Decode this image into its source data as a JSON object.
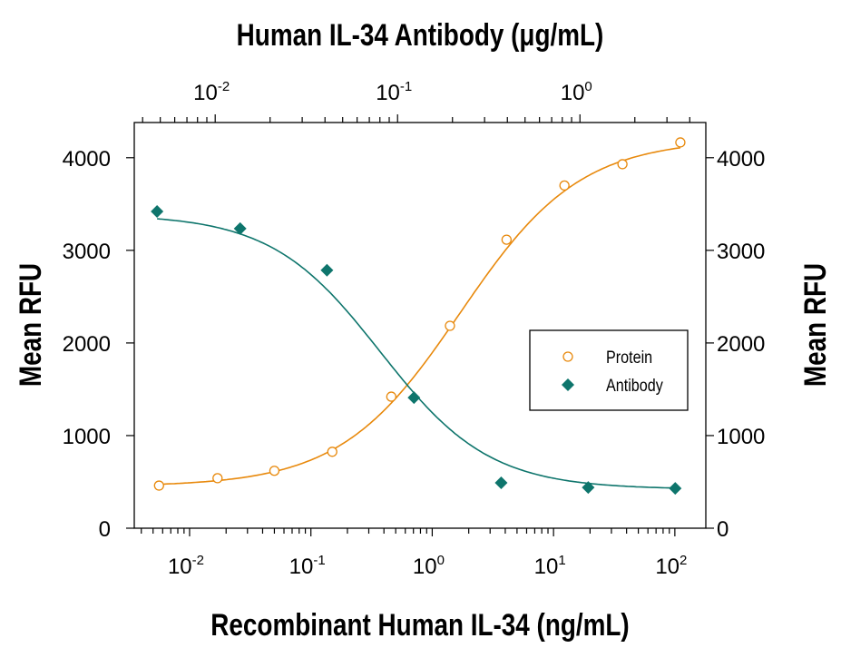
{
  "chart_data": {
    "type": "scatter",
    "top_xlabel": "Human IL-34 Antibody (μg/mL)",
    "xlabel": "Recombinant Human IL-34 (ng/mL)",
    "ylabel_left": "Mean RFU",
    "ylabel_right": "Mean RFU",
    "x_scale": "log",
    "top_x_scale": "log",
    "xlim": [
      0.0035,
      180
    ],
    "top_xlim": [
      0.0036,
      4.9
    ],
    "ylim": [
      0,
      4380
    ],
    "x_ticks": [
      {
        "base": "10",
        "exp": "-2"
      },
      {
        "base": "10",
        "exp": "-1"
      },
      {
        "base": "10",
        "exp": "0"
      },
      {
        "base": "10",
        "exp": "1"
      },
      {
        "base": "10",
        "exp": "2"
      }
    ],
    "top_x_ticks": [
      {
        "base": "10",
        "exp": "-2"
      },
      {
        "base": "10",
        "exp": "-1"
      },
      {
        "base": "10",
        "exp": "0"
      }
    ],
    "y_ticks": [
      "0",
      "1000",
      "2000",
      "3000",
      "4000"
    ],
    "grid": false,
    "legend_position": "center-right",
    "series": [
      {
        "name": "Protein",
        "axis": "bottom",
        "marker": "open-circle",
        "color": "#E8890C",
        "x": [
          0.0056,
          0.017,
          0.05,
          0.15,
          0.46,
          1.4,
          4.1,
          12.3,
          37,
          111
        ],
        "y": [
          460,
          540,
          620,
          825,
          1420,
          2185,
          3115,
          3700,
          3930,
          4165
        ]
      },
      {
        "name": "Antibody",
        "axis": "top",
        "marker": "filled-diamond",
        "color": "#0E756C",
        "x": [
          0.0048,
          0.0137,
          0.041,
          0.123,
          0.37,
          1.11,
          3.33
        ],
        "y": [
          3420,
          3235,
          2785,
          1410,
          490,
          440,
          430
        ]
      }
    ]
  }
}
